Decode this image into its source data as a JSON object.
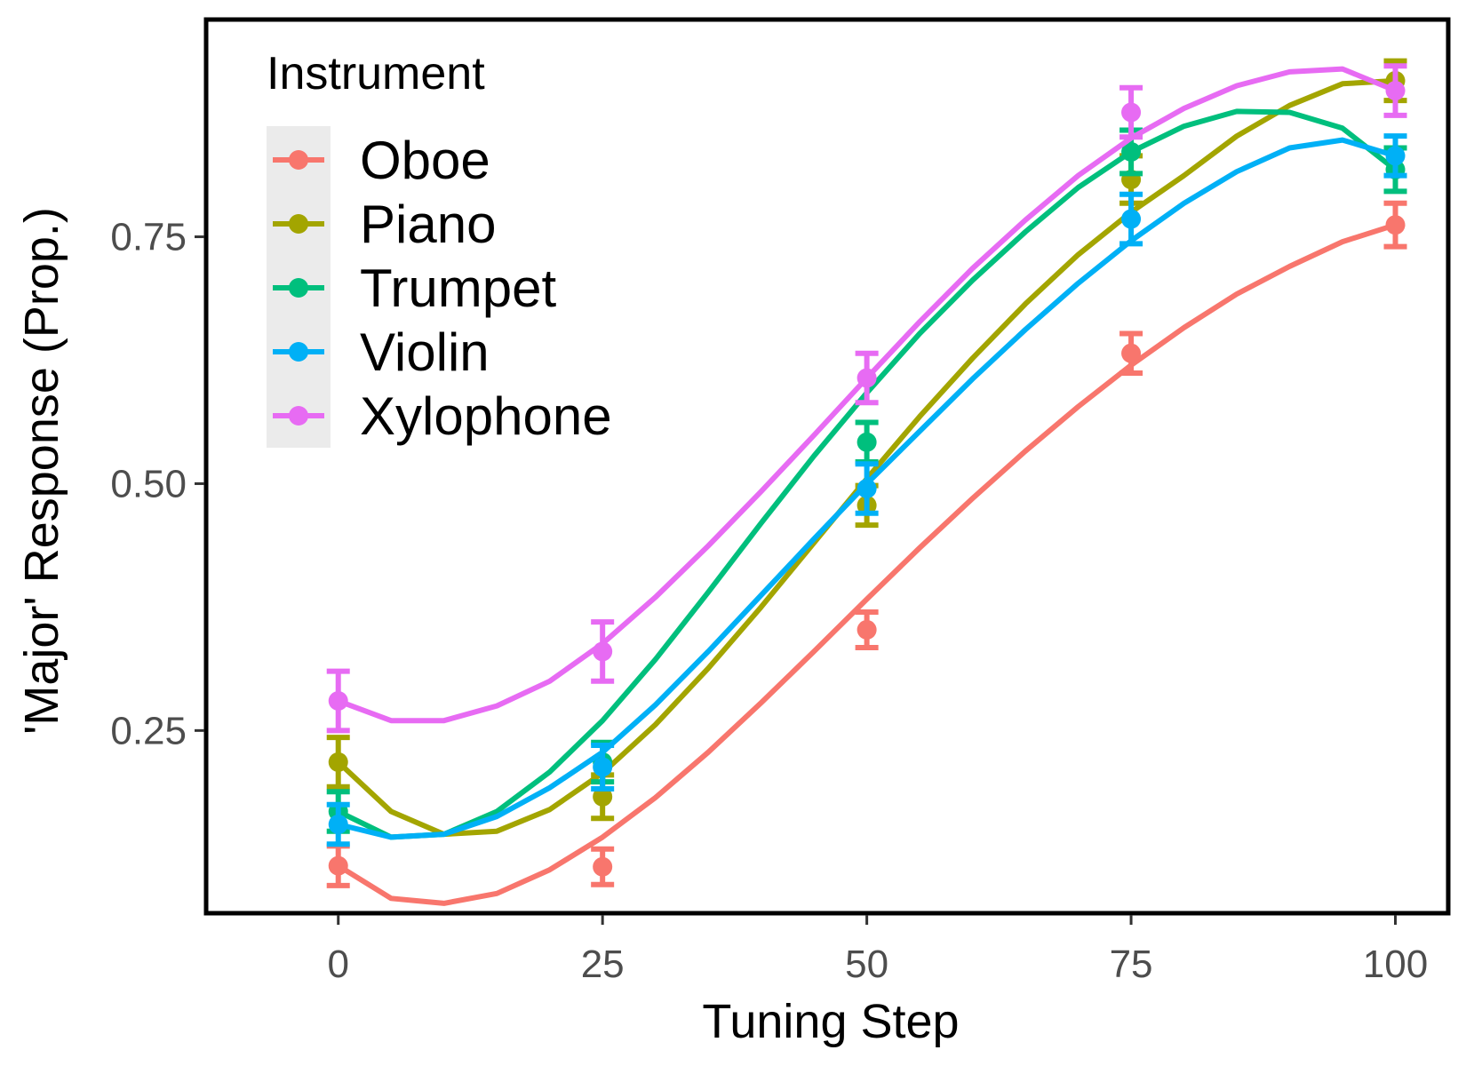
{
  "chart_data": {
    "type": "line",
    "xlabel": "Tuning Step",
    "ylabel": "'Major' Response (Prop.)",
    "xlim": [
      -12.5,
      105
    ],
    "ylim": [
      0.065,
      0.97
    ],
    "x_ticks": [
      0,
      25,
      50,
      75,
      100
    ],
    "x_tick_labels": [
      "0",
      "25",
      "50",
      "75",
      "100"
    ],
    "y_ticks": [
      0.25,
      0.5,
      0.75
    ],
    "y_tick_labels": [
      "0.25",
      "0.50",
      "0.75"
    ],
    "grid": false,
    "legend": {
      "title": "Instrument",
      "position": "top-left"
    },
    "x": [
      0,
      25,
      50,
      75,
      100
    ],
    "series": [
      {
        "name": "Oboe",
        "color": "#F8766D",
        "values": [
          0.113,
          0.112,
          0.352,
          0.632,
          0.762
        ],
        "error": [
          0.02,
          0.018,
          0.018,
          0.02,
          0.022
        ],
        "curve": [
          0.113,
          0.08,
          0.075,
          0.085,
          0.109,
          0.142,
          0.182,
          0.228,
          0.278,
          0.33,
          0.383,
          0.435,
          0.485,
          0.533,
          0.578,
          0.62,
          0.658,
          0.692,
          0.72,
          0.745,
          0.762
        ]
      },
      {
        "name": "Piano",
        "color": "#A3A500",
        "values": [
          0.218,
          0.183,
          0.478,
          0.808,
          0.908
        ],
        "error": [
          0.025,
          0.022,
          0.02,
          0.024,
          0.02
        ],
        "curve": [
          0.218,
          0.168,
          0.145,
          0.148,
          0.17,
          0.207,
          0.256,
          0.313,
          0.375,
          0.44,
          0.505,
          0.568,
          0.627,
          0.682,
          0.732,
          0.775,
          0.812,
          0.852,
          0.883,
          0.905,
          0.908
        ]
      },
      {
        "name": "Trumpet",
        "color": "#00BF7D",
        "values": [
          0.168,
          0.218,
          0.542,
          0.836,
          0.818
        ],
        "error": [
          0.02,
          0.02,
          0.02,
          0.022,
          0.022
        ],
        "curve": [
          0.168,
          0.142,
          0.145,
          0.168,
          0.208,
          0.26,
          0.322,
          0.39,
          0.46,
          0.528,
          0.592,
          0.652,
          0.706,
          0.755,
          0.8,
          0.836,
          0.862,
          0.877,
          0.876,
          0.86,
          0.818
        ]
      },
      {
        "name": "Violin",
        "color": "#00B0F6",
        "values": [
          0.155,
          0.213,
          0.495,
          0.768,
          0.832
        ],
        "error": [
          0.02,
          0.022,
          0.025,
          0.025,
          0.02
        ],
        "curve": [
          0.155,
          0.142,
          0.145,
          0.163,
          0.192,
          0.228,
          0.276,
          0.33,
          0.387,
          0.444,
          0.5,
          0.553,
          0.606,
          0.656,
          0.703,
          0.746,
          0.784,
          0.816,
          0.84,
          0.848,
          0.832
        ]
      },
      {
        "name": "Xylophone",
        "color": "#E76BF3",
        "values": [
          0.28,
          0.33,
          0.607,
          0.876,
          0.898
        ],
        "error": [
          0.03,
          0.03,
          0.025,
          0.025,
          0.025
        ],
        "curve": [
          0.28,
          0.26,
          0.26,
          0.275,
          0.3,
          0.338,
          0.385,
          0.437,
          0.492,
          0.549,
          0.607,
          0.664,
          0.718,
          0.767,
          0.812,
          0.85,
          0.88,
          0.903,
          0.917,
          0.92,
          0.898
        ]
      }
    ]
  }
}
